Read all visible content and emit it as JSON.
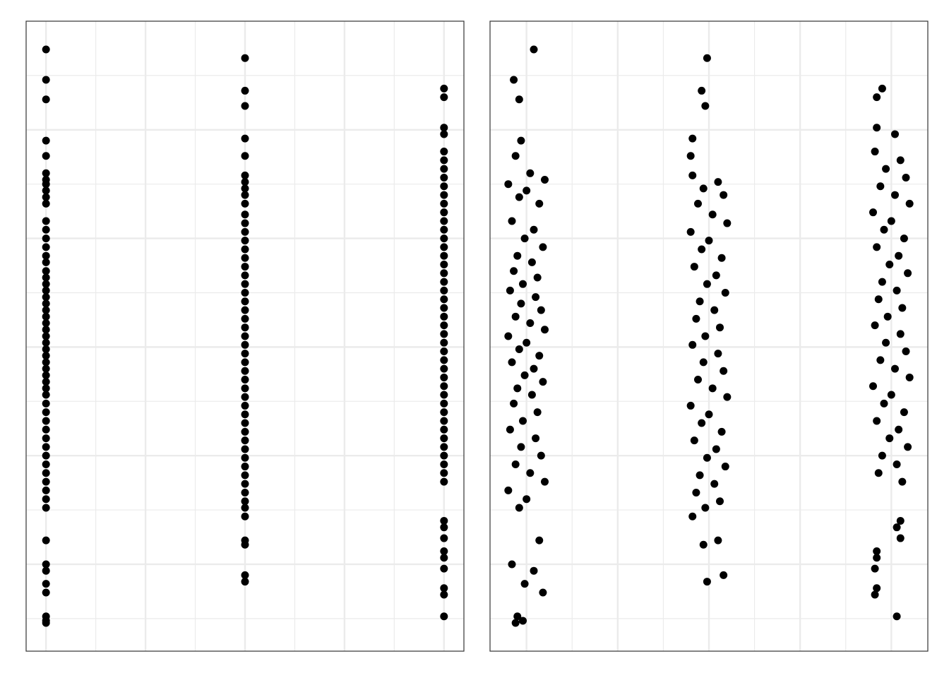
{
  "chart_data": [
    {
      "type": "scatter",
      "color": "#000000",
      "grid": true,
      "xlim": [
        0.9,
        3.1
      ],
      "xticks": [
        1,
        1.5,
        2,
        2.5,
        3
      ],
      "xminor": [
        1.25,
        1.75,
        2.25,
        2.75
      ],
      "ylim": [
        6,
        35
      ],
      "yticks": [
        10,
        15,
        20,
        25,
        30
      ],
      "yminor": [
        7.5,
        12.5,
        17.5,
        22.5,
        27.5,
        32.5
      ],
      "x": [
        1,
        1,
        1,
        1,
        1,
        1,
        1,
        1,
        1,
        1,
        1,
        1,
        1,
        1,
        1,
        1,
        1,
        1,
        1,
        1,
        1,
        1,
        1,
        1,
        1,
        1,
        1,
        1,
        1,
        1,
        1,
        1,
        1,
        1,
        1,
        1,
        1,
        1,
        1,
        1,
        1,
        1,
        1,
        1,
        1,
        1,
        1,
        1,
        1,
        1,
        1,
        1,
        1,
        1,
        1,
        1,
        1,
        1,
        2,
        2,
        2,
        2,
        2,
        2,
        2,
        2,
        2,
        2,
        2,
        2,
        2,
        2,
        2,
        2,
        2,
        2,
        2,
        2,
        2,
        2,
        2,
        2,
        2,
        2,
        2,
        2,
        2,
        2,
        2,
        2,
        2,
        2,
        2,
        2,
        2,
        2,
        2,
        2,
        2,
        2,
        2,
        2,
        2,
        2,
        2,
        2,
        2,
        2,
        3,
        3,
        3,
        3,
        3,
        3,
        3,
        3,
        3,
        3,
        3,
        3,
        3,
        3,
        3,
        3,
        3,
        3,
        3,
        3,
        3,
        3,
        3,
        3,
        3,
        3,
        3,
        3,
        3,
        3,
        3,
        3,
        3,
        3,
        3,
        3,
        3,
        3,
        3,
        3,
        3,
        3,
        3,
        3,
        3,
        3,
        3,
        3,
        3,
        3,
        3,
        3
      ],
      "values": [
        33.7,
        32.3,
        31.4,
        29.5,
        28.8,
        28.0,
        27.7,
        27.5,
        27.2,
        26.9,
        26.6,
        25.8,
        25.4,
        25.0,
        24.6,
        24.2,
        23.9,
        23.5,
        23.2,
        22.9,
        22.6,
        22.3,
        22.0,
        21.7,
        21.4,
        21.1,
        20.8,
        20.5,
        20.2,
        19.9,
        19.6,
        19.3,
        19.0,
        18.7,
        18.4,
        18.1,
        17.8,
        17.4,
        17.0,
        16.6,
        16.2,
        15.8,
        15.4,
        15.0,
        14.6,
        14.2,
        13.8,
        13.4,
        13.0,
        12.6,
        11.1,
        10.0,
        9.7,
        9.1,
        8.7,
        7.6,
        7.4,
        7.3,
        33.3,
        31.8,
        31.1,
        29.6,
        28.8,
        27.9,
        27.6,
        27.3,
        27.0,
        26.6,
        26.1,
        25.7,
        25.3,
        24.9,
        24.5,
        24.1,
        23.7,
        23.3,
        22.9,
        22.5,
        22.1,
        21.7,
        21.3,
        20.9,
        20.5,
        20.1,
        19.7,
        19.3,
        18.9,
        18.5,
        18.1,
        17.7,
        17.3,
        16.9,
        16.5,
        16.1,
        15.7,
        15.3,
        14.9,
        14.5,
        14.1,
        13.7,
        13.3,
        12.9,
        12.6,
        12.2,
        11.1,
        10.9,
        9.5,
        9.2,
        31.9,
        31.5,
        30.1,
        29.8,
        29.0,
        28.6,
        28.2,
        27.8,
        27.4,
        27.0,
        26.6,
        26.2,
        25.8,
        25.4,
        25.0,
        24.6,
        24.2,
        23.8,
        23.4,
        23.0,
        22.6,
        22.2,
        21.8,
        21.4,
        21.0,
        20.6,
        20.2,
        19.8,
        19.4,
        19.0,
        18.6,
        18.2,
        17.8,
        17.4,
        17.0,
        16.6,
        16.2,
        15.8,
        15.4,
        15.0,
        14.6,
        14.2,
        13.8,
        12.0,
        11.7,
        11.2,
        10.6,
        10.3,
        9.8,
        8.9,
        8.6,
        7.6
      ]
    },
    {
      "type": "scatter",
      "color": "#000000",
      "grid": true,
      "xlim": [
        0.8,
        3.2
      ],
      "xticks": [
        1,
        1.5,
        2,
        2.5,
        3
      ],
      "xminor": [
        1.25,
        1.75,
        2.25,
        2.75
      ],
      "ylim": [
        6,
        35
      ],
      "yticks": [
        10,
        15,
        20,
        25,
        30
      ],
      "yminor": [
        7.5,
        12.5,
        17.5,
        22.5,
        27.5,
        32.5
      ],
      "x": [
        1.04,
        0.93,
        0.96,
        0.97,
        0.94,
        1.02,
        1.1,
        0.9,
        1.0,
        0.96,
        1.07,
        0.92,
        1.04,
        0.99,
        1.09,
        0.95,
        1.03,
        0.93,
        1.06,
        0.98,
        0.91,
        1.05,
        0.97,
        1.08,
        0.94,
        1.02,
        1.1,
        0.9,
        1.0,
        0.96,
        1.07,
        0.92,
        1.04,
        0.99,
        1.09,
        0.95,
        1.03,
        0.93,
        1.06,
        0.98,
        0.91,
        1.05,
        0.97,
        1.08,
        0.94,
        1.02,
        1.1,
        0.9,
        1.0,
        0.96,
        1.07,
        0.92,
        1.04,
        0.99,
        1.09,
        0.95,
        0.98,
        0.94,
        1.99,
        1.96,
        1.98,
        1.91,
        1.9,
        1.91,
        2.05,
        1.97,
        2.08,
        1.94,
        2.02,
        2.1,
        1.9,
        2.0,
        1.96,
        2.07,
        1.92,
        2.04,
        1.99,
        2.09,
        1.95,
        2.03,
        1.93,
        2.06,
        1.98,
        1.91,
        2.05,
        1.97,
        2.08,
        1.94,
        2.02,
        2.1,
        1.9,
        2.0,
        1.96,
        2.07,
        1.92,
        2.04,
        1.99,
        2.09,
        1.95,
        2.03,
        1.93,
        2.06,
        1.98,
        1.91,
        2.05,
        1.97,
        2.08,
        1.99,
        2.95,
        2.92,
        2.92,
        3.02,
        2.91,
        3.05,
        2.97,
        3.08,
        2.94,
        3.02,
        3.1,
        2.9,
        3.0,
        2.96,
        3.07,
        2.92,
        3.04,
        2.99,
        3.09,
        2.95,
        3.03,
        2.93,
        3.06,
        2.98,
        2.91,
        3.05,
        2.97,
        3.08,
        2.94,
        3.02,
        3.1,
        2.9,
        3.0,
        2.96,
        3.07,
        2.92,
        3.04,
        2.99,
        3.09,
        2.95,
        3.03,
        2.93,
        3.06,
        3.05,
        3.03,
        3.05,
        2.92,
        2.92,
        2.91,
        2.92,
        2.91,
        3.03
      ],
      "values": [
        33.7,
        32.3,
        31.4,
        29.5,
        28.8,
        28.0,
        27.7,
        27.5,
        27.2,
        26.9,
        26.6,
        25.8,
        25.4,
        25.0,
        24.6,
        24.2,
        23.9,
        23.5,
        23.2,
        22.9,
        22.6,
        22.3,
        22.0,
        21.7,
        21.4,
        21.1,
        20.8,
        20.5,
        20.2,
        19.9,
        19.6,
        19.3,
        19.0,
        18.7,
        18.4,
        18.1,
        17.8,
        17.4,
        17.0,
        16.6,
        16.2,
        15.8,
        15.4,
        15.0,
        14.6,
        14.2,
        13.8,
        13.4,
        13.0,
        12.6,
        11.1,
        10.0,
        9.7,
        9.1,
        8.7,
        7.6,
        7.4,
        7.3,
        33.3,
        31.8,
        31.1,
        29.6,
        28.8,
        27.9,
        27.6,
        27.3,
        27.0,
        26.6,
        26.1,
        25.7,
        25.3,
        24.9,
        24.5,
        24.1,
        23.7,
        23.3,
        22.9,
        22.5,
        22.1,
        21.7,
        21.3,
        20.9,
        20.5,
        20.1,
        19.7,
        19.3,
        18.9,
        18.5,
        18.1,
        17.7,
        17.3,
        16.9,
        16.5,
        16.1,
        15.7,
        15.3,
        14.9,
        14.5,
        14.1,
        13.7,
        13.3,
        12.9,
        12.6,
        12.2,
        11.1,
        10.9,
        9.5,
        9.2,
        31.9,
        31.5,
        30.1,
        29.8,
        29.0,
        28.6,
        28.2,
        27.8,
        27.4,
        27.0,
        26.6,
        26.2,
        25.8,
        25.4,
        25.0,
        24.6,
        24.2,
        23.8,
        23.4,
        23.0,
        22.6,
        22.2,
        21.8,
        21.4,
        21.0,
        20.6,
        20.2,
        19.8,
        19.4,
        19.0,
        18.6,
        18.2,
        17.8,
        17.4,
        17.0,
        16.6,
        16.2,
        15.8,
        15.4,
        15.0,
        14.6,
        14.2,
        13.8,
        12.0,
        11.7,
        11.2,
        10.6,
        10.3,
        9.8,
        8.9,
        8.6,
        7.6
      ]
    }
  ]
}
